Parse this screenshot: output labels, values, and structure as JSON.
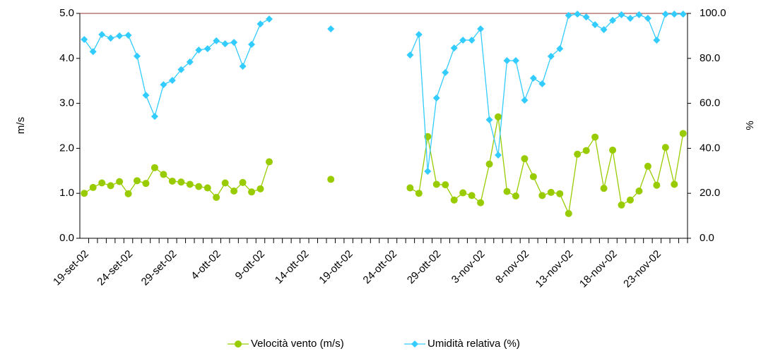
{
  "chart_data": {
    "type": "line",
    "categories": [
      "19-set-02",
      null,
      null,
      null,
      null,
      "24-set-02",
      null,
      null,
      null,
      null,
      "29-set-02",
      null,
      null,
      null,
      null,
      "4-ott-02",
      null,
      null,
      null,
      null,
      "9-ott-02",
      null,
      null,
      null,
      null,
      "14-ott-02",
      null,
      null,
      null,
      null,
      "19-ott-02",
      null,
      null,
      null,
      null,
      "24-ott-02",
      null,
      null,
      null,
      null,
      "29-ott-02",
      null,
      null,
      null,
      null,
      "3-nov-02",
      null,
      null,
      null,
      null,
      "8-nov-02",
      null,
      null,
      null,
      null,
      "13-nov-02",
      null,
      null,
      null,
      null,
      "18-nov-02",
      null,
      null,
      null,
      null,
      "23-nov-02",
      null,
      null,
      null
    ],
    "series": [
      {
        "name": "Velocità vento (m/s)",
        "color": "#99cc00",
        "values": [
          1.0,
          1.13,
          1.23,
          1.17,
          1.26,
          0.99,
          1.28,
          1.22,
          1.57,
          1.42,
          1.27,
          1.25,
          1.2,
          1.15,
          1.12,
          0.91,
          1.23,
          1.05,
          1.24,
          1.03,
          1.1,
          1.7,
          null,
          null,
          null,
          null,
          null,
          null,
          1.31,
          null,
          null,
          null,
          null,
          null,
          null,
          null,
          null,
          1.12,
          1.0,
          2.26,
          1.2,
          1.19,
          0.85,
          1.01,
          0.95,
          0.79,
          1.65,
          2.7,
          1.04,
          0.94,
          1.77,
          1.37,
          0.95,
          1.02,
          0.99,
          0.55,
          1.87,
          1.95,
          2.25,
          1.11,
          1.96,
          0.74,
          0.85,
          1.05,
          1.6,
          1.18,
          2.02,
          1.2,
          2.33
        ]
      },
      {
        "name": "Umidità relativa (%)",
        "color": "#33ccff",
        "axis": "y2",
        "values": [
          88.4,
          83,
          90.6,
          89,
          90,
          90.3,
          81,
          63.6,
          54.2,
          68.3,
          70.2,
          75,
          78.4,
          83.7,
          84.3,
          87.8,
          86.5,
          87.1,
          76.5,
          86.2,
          95.3,
          97.5,
          null,
          null,
          null,
          null,
          null,
          null,
          93.1,
          null,
          null,
          null,
          null,
          null,
          null,
          null,
          null,
          81.5,
          90.6,
          29.8,
          62.4,
          73.7,
          84.6,
          88.1,
          88.1,
          93.1,
          52.7,
          37.0,
          79.0,
          79.0,
          61.4,
          71.2,
          68.7,
          80.9,
          84.3,
          99.1,
          99.7,
          98.4,
          95.0,
          92.8,
          96.9,
          99.4,
          97.8,
          99.4,
          97.8,
          88.1,
          99.7,
          99.7,
          99.7
        ]
      }
    ],
    "ylabel": "m/s",
    "y2label": "%",
    "ylim": [
      0,
      5
    ],
    "yticks": [
      {
        "value": 0,
        "label": "0.0"
      },
      {
        "value": 1,
        "label": "1.0"
      },
      {
        "value": 2,
        "label": "2.0"
      },
      {
        "value": 3,
        "label": "3.0"
      },
      {
        "value": 4,
        "label": "4.0"
      },
      {
        "value": 5,
        "label": "5.0"
      }
    ],
    "y2lim": [
      0,
      100
    ],
    "y2ticks": [
      {
        "value": 0,
        "label": "0.0"
      },
      {
        "value": 20,
        "label": "20.0"
      },
      {
        "value": 40,
        "label": "40.0"
      },
      {
        "value": 60,
        "label": "60.0"
      },
      {
        "value": 80,
        "label": "80.0"
      },
      {
        "value": 100,
        "label": "100.0"
      }
    ],
    "legend": "bottom",
    "grid": false
  }
}
